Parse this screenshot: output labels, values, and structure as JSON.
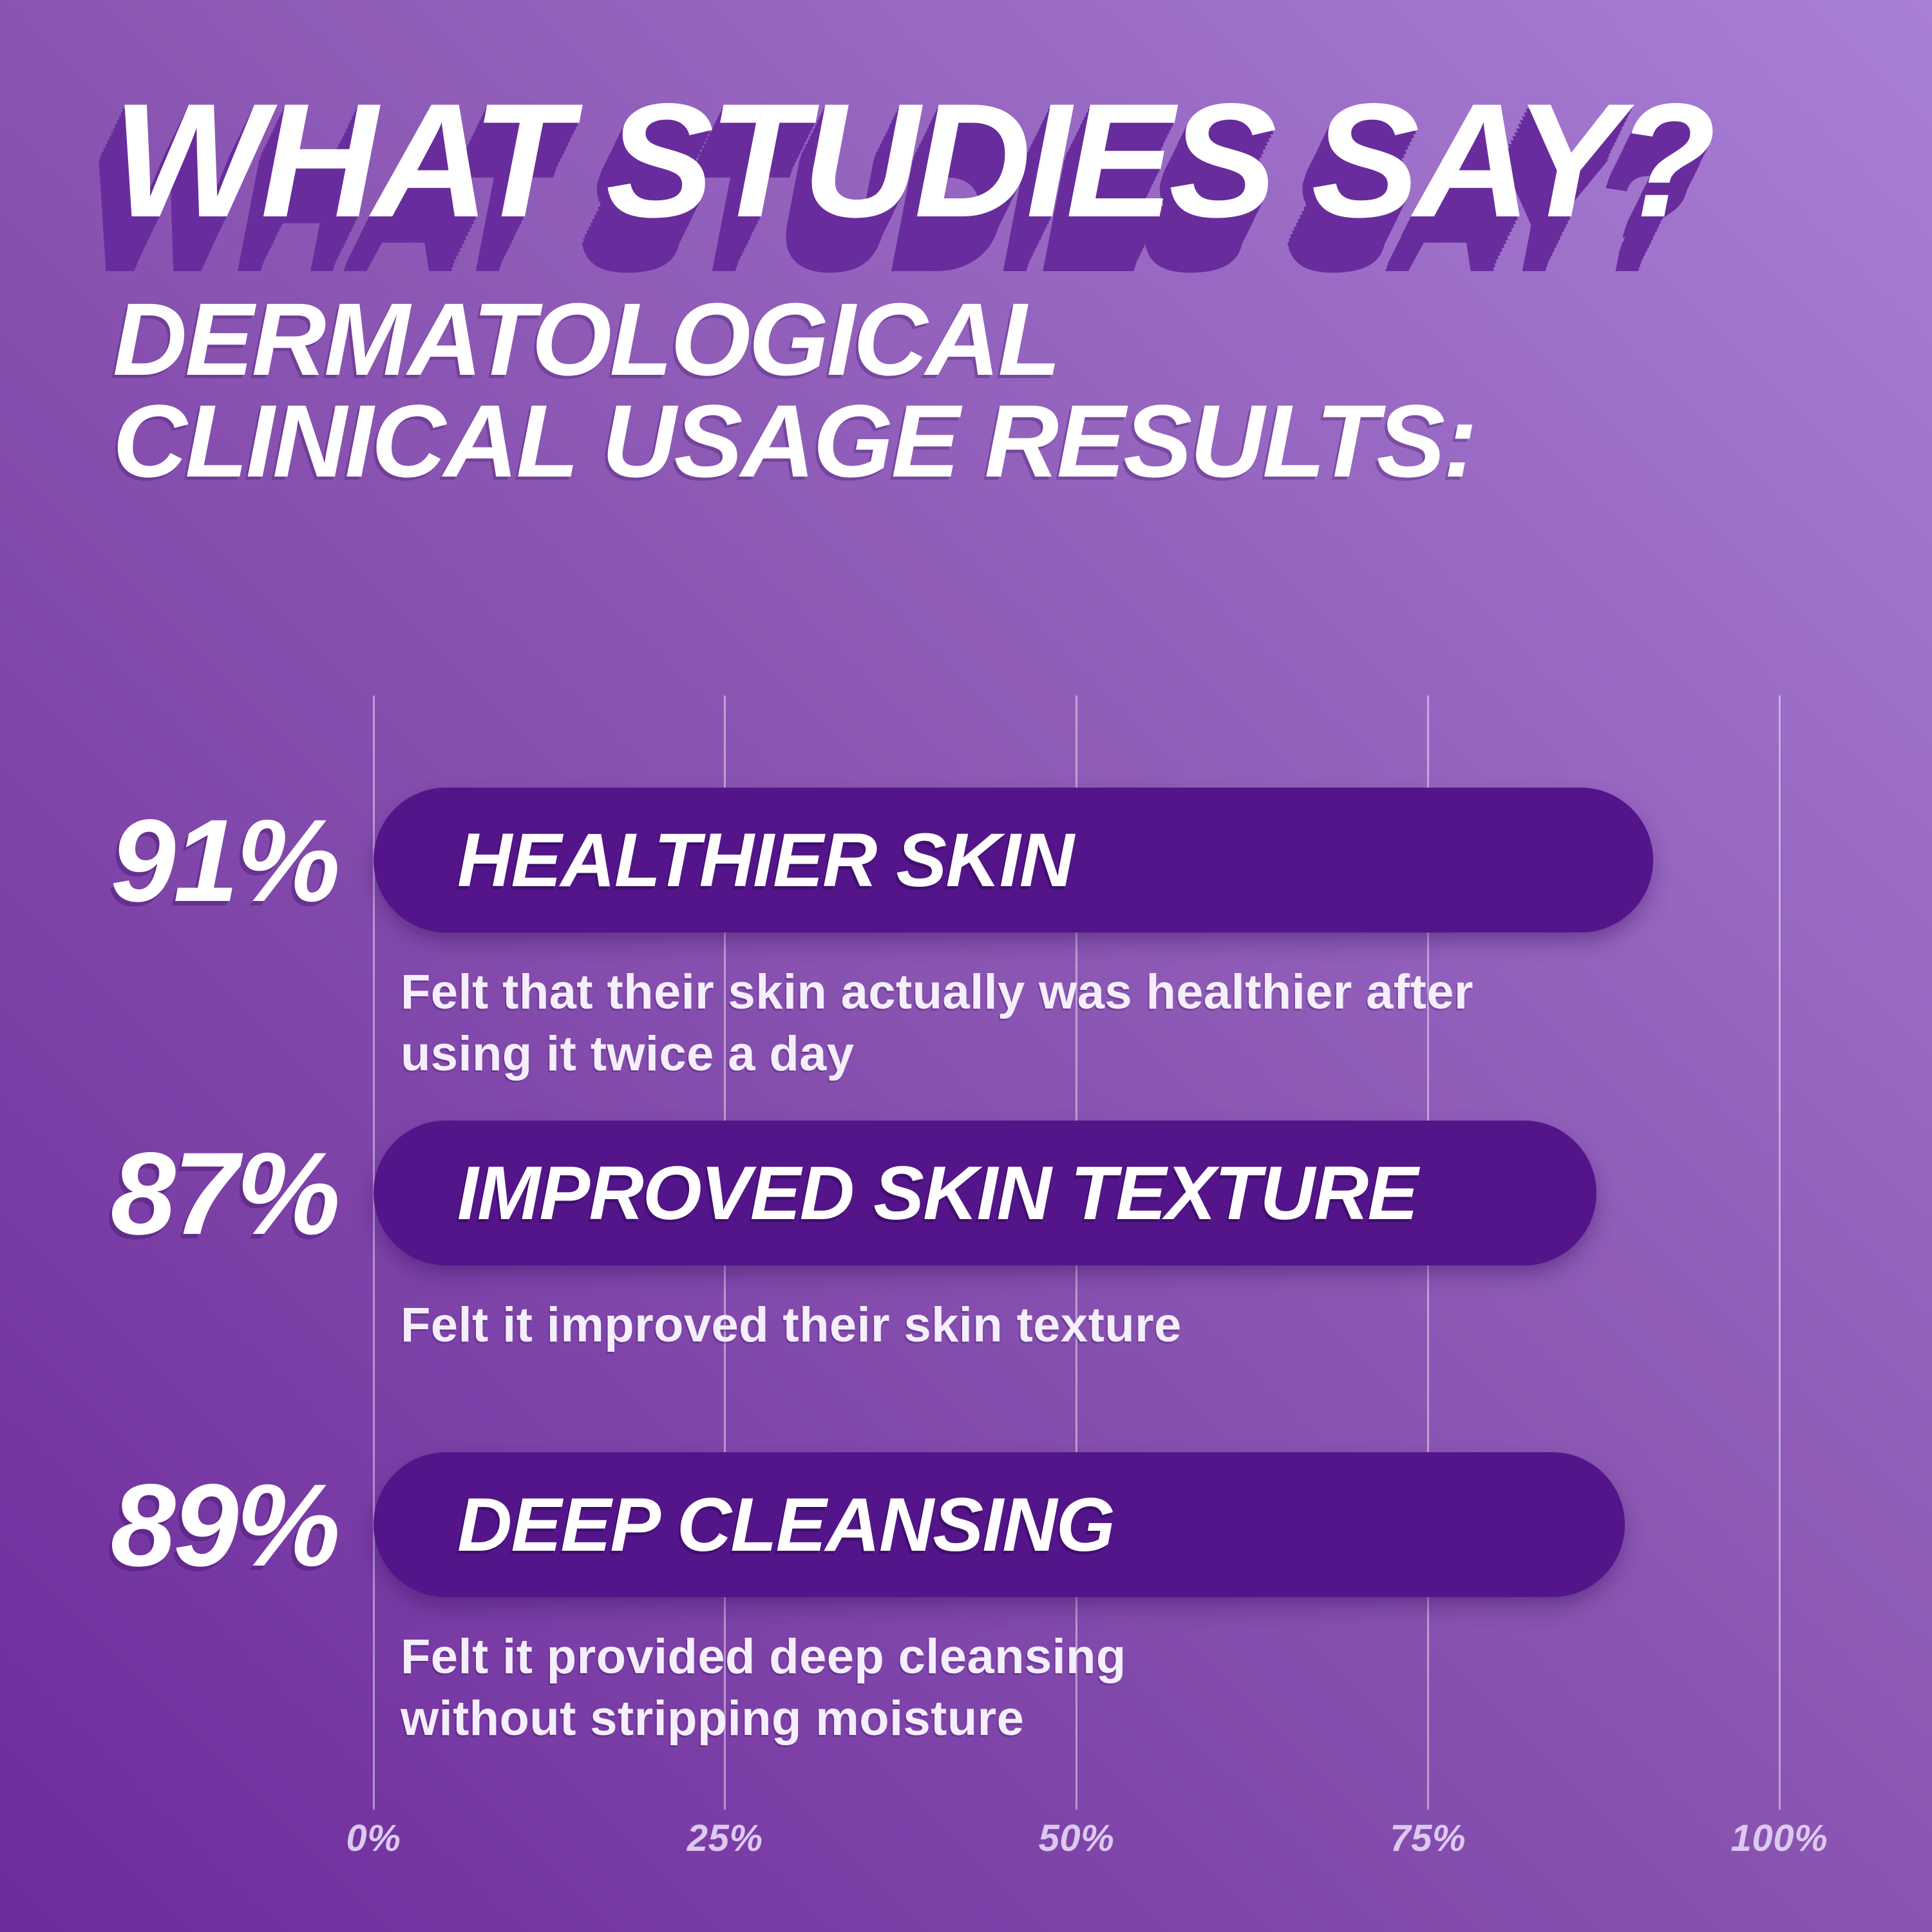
{
  "page": {
    "title": "WHAT STUDIES SAY?",
    "subtitle_line1": "DERMATOLOGICAL",
    "subtitle_line2": "CLINICAL USAGE RESULTS:"
  },
  "chart_data": {
    "type": "bar",
    "orientation": "horizontal",
    "title": "DERMATOLOGICAL CLINICAL USAGE RESULTS",
    "categories": [
      "HEALTHIER SKIN",
      "IMPROVED SKIN TEXTURE",
      "DEEP CLEANSING"
    ],
    "values": [
      91,
      87,
      89
    ],
    "value_labels": [
      "91%",
      "87%",
      "89%"
    ],
    "descriptions": [
      "Felt that their skin actually was healthier after using it twice a day",
      "Felt it improved their skin texture",
      "Felt it provided deep cleansing without stripping moisture"
    ],
    "x_ticks": [
      "0%",
      "25%",
      "50%",
      "75%",
      "100%"
    ],
    "xlim": [
      0,
      100
    ],
    "grid": true,
    "legend": false,
    "rows": [
      {
        "pct_label": "91%",
        "value": 91,
        "label": "HEALTHIER SKIN",
        "desc_lines": [
          "Felt that their skin actually was healthier after",
          "using it twice a day"
        ]
      },
      {
        "pct_label": "87%",
        "value": 87,
        "label": "IMPROVED SKIN TEXTURE",
        "desc_lines": [
          "Felt it improved their skin texture"
        ]
      },
      {
        "pct_label": "89%",
        "value": 89,
        "label": "DEEP CLEANSING",
        "desc_lines": [
          "Felt it provided deep cleansing",
          "without stripping moisture"
        ]
      }
    ]
  },
  "colors": {
    "background_bottom_left": "#6e2b9c",
    "background_mid": "#8a55b2",
    "background_top_right": "#a87fd6",
    "bar_fill": "#531589",
    "title_text": "#ffffff",
    "title_shadow": "#682c9d",
    "description_text": "#f5eefc",
    "axis_label_text": "#dcc9f0",
    "gridline": "rgba(255,255,255,0.45)"
  }
}
